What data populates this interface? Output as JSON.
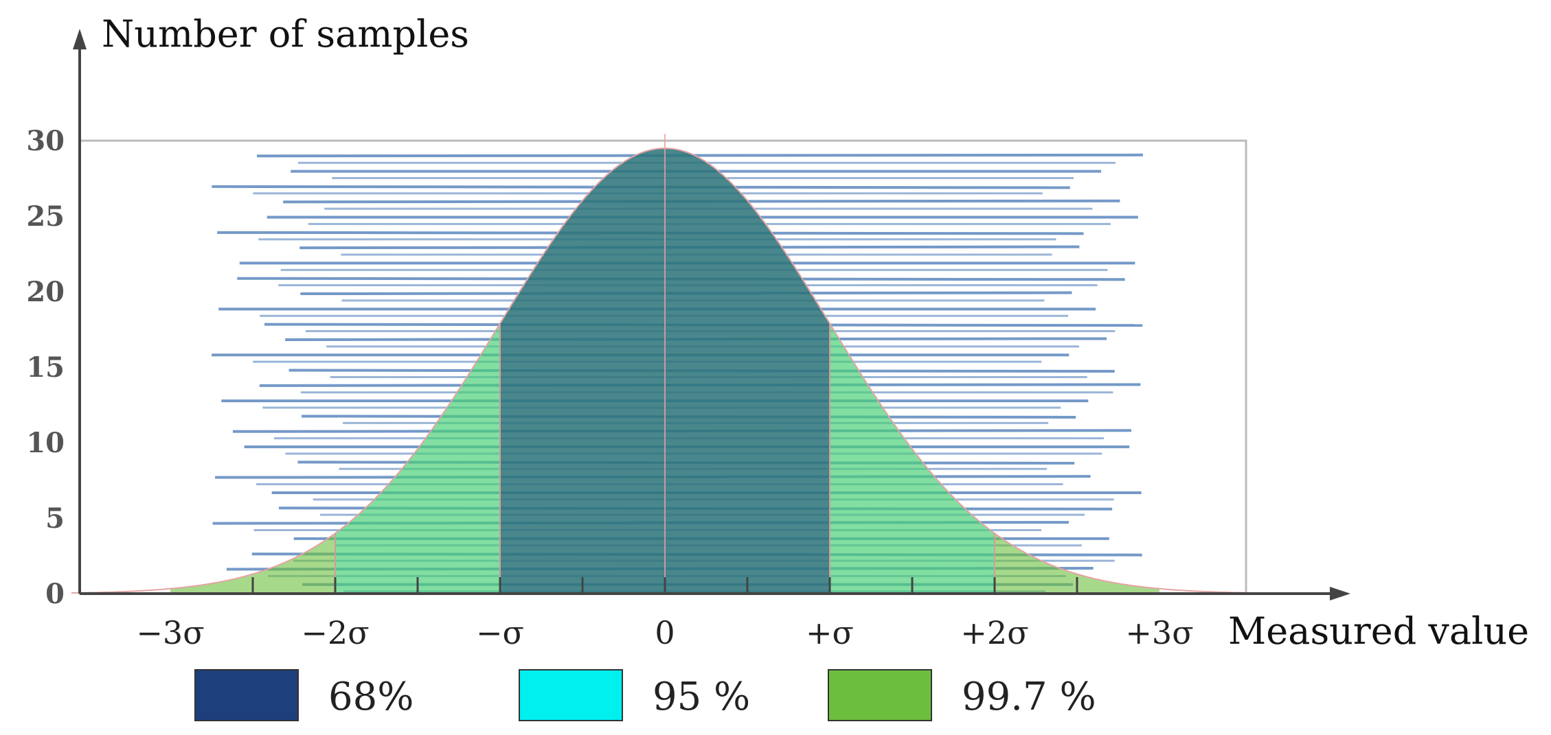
{
  "chart_data": {
    "type": "area",
    "title": "",
    "xlabel": "Measured value",
    "ylabel": "Number of samples",
    "ylim": [
      0,
      30
    ],
    "xlim_sigma": [
      -3.6,
      3.6
    ],
    "y_ticks": [
      "0",
      "5",
      "10",
      "15",
      "20",
      "25",
      "30"
    ],
    "x_ticks": [
      {
        "label": "−3σ",
        "value": -3
      },
      {
        "label": "−2σ",
        "value": -2
      },
      {
        "label": "−σ",
        "value": -1
      },
      {
        "label": "0",
        "value": 0
      },
      {
        "label": "+σ",
        "value": 1
      },
      {
        "label": "+2σ",
        "value": 2
      },
      {
        "label": "+3σ",
        "value": 3
      }
    ],
    "curve": {
      "shape": "normal",
      "mean": 0,
      "sigma": 1,
      "peak": 29.5
    },
    "bands": [
      {
        "label": "68%",
        "from": -1,
        "to": 1,
        "color": "#1d3f7c"
      },
      {
        "label": "95 %",
        "from": -2,
        "to": 2,
        "color": "#00f0f0"
      },
      {
        "label": "99.7 %",
        "from": -3,
        "to": 3,
        "color": "#6cbf3e"
      }
    ],
    "legend": {
      "position": "bottom",
      "entries": [
        "68%",
        "95 %",
        "99.7 %"
      ]
    },
    "sample_lines": {
      "count": 29,
      "color": "#1f5aa6"
    },
    "grid": false
  }
}
